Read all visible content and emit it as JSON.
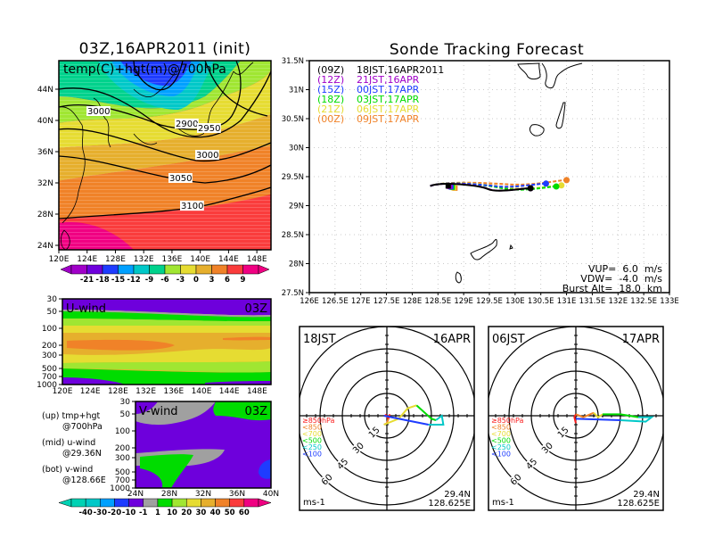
{
  "colors": {
    "temp_scale": [
      "#a000c8",
      "#6e00dc",
      "#1e3cff",
      "#00a0ff",
      "#00c8c8",
      "#00d28c",
      "#a0e632",
      "#e6dc32",
      "#e6af2d",
      "#f08228",
      "#fa3c3c",
      "#f00082"
    ],
    "wind_scale": [
      "#00d2b4",
      "#00c8c8",
      "#00a0ff",
      "#1e3cff",
      "#6e00dc",
      "#a0a0a0",
      "#00dc00",
      "#a0e632",
      "#e6dc32",
      "#e6af2d",
      "#f08228",
      "#fa3c3c",
      "#f00082"
    ],
    "track": [
      "#000000",
      "#a000c8",
      "#1e3cff",
      "#00dc00",
      "#e6dc32",
      "#f08228"
    ],
    "hodo_levels": [
      "#fa1e1e",
      "#f08228",
      "#e6dc32",
      "#00dc00",
      "#00c8c8",
      "#1e3cff"
    ]
  },
  "chart_data": [
    {
      "id": "map700",
      "type": "heatmap",
      "title": "03Z,16APR2011  (init)",
      "label": "temp(C)+hgt(m)@700hPa",
      "xticks": [
        "120E",
        "124E",
        "128E",
        "132E",
        "136E",
        "140E",
        "144E",
        "148E"
      ],
      "yticks": [
        "44N",
        "40N",
        "36N",
        "32N",
        "28N",
        "24N"
      ],
      "xlim": [
        120,
        150
      ],
      "ylim": [
        22,
        47
      ],
      "contour_labels": [
        "3000",
        "2900",
        "2950",
        "3000",
        "3050",
        "3100"
      ],
      "colorbar": {
        "ticks": [
          "-21",
          "-18",
          "-15",
          "-12",
          "-9",
          "-6",
          "-3",
          "0",
          "3",
          "6",
          "9"
        ]
      }
    },
    {
      "id": "uwind",
      "type": "heatmap",
      "label": "U-wind",
      "time": "03Z",
      "xticks": [
        "120E",
        "124E",
        "128E",
        "132E",
        "136E",
        "140E",
        "144E",
        "148E"
      ],
      "yticks": [
        "30",
        "50",
        "100",
        "200",
        "300",
        "500",
        "700",
        "1000"
      ]
    },
    {
      "id": "vwind",
      "type": "heatmap",
      "label": "V-wind",
      "time": "03Z",
      "xticks": [
        "24N",
        "28N",
        "32N",
        "36N",
        "40N"
      ],
      "yticks": [
        "30",
        "50",
        "100",
        "200",
        "300",
        "500",
        "700",
        "1000"
      ],
      "colorbar": {
        "ticks": [
          "-40",
          "-30",
          "-20",
          "-10",
          "-1",
          "1",
          "10",
          "20",
          "30",
          "40",
          "50",
          "60"
        ]
      }
    },
    {
      "id": "track",
      "type": "line",
      "title": "Sonde Tracking Forecast",
      "xticks": [
        "126E",
        "126.5E",
        "127E",
        "127.5E",
        "128E",
        "128.5E",
        "129E",
        "129.5E",
        "130E",
        "130.5E",
        "131E",
        "131.5E",
        "132E",
        "132.5E",
        "133E"
      ],
      "yticks": [
        "31.5N",
        "31N",
        "30.5N",
        "30N",
        "29.5N",
        "29N",
        "28.5N",
        "28N",
        "27.5N"
      ],
      "xlim": [
        126,
        133
      ],
      "ylim": [
        27.5,
        31.5
      ],
      "legend": [
        {
          "utc": "(09Z)",
          "jst": "18JST,16APR2011"
        },
        {
          "utc": "(12Z)",
          "jst": "21JST,16APR"
        },
        {
          "utc": "(15Z)",
          "jst": "00JST,17APR"
        },
        {
          "utc": "(18Z)",
          "jst": "03JST,17APR"
        },
        {
          "utc": "(21Z)",
          "jst": "06JST,17APR"
        },
        {
          "utc": "(00Z)",
          "jst": "09JST,17APR"
        }
      ],
      "series": [
        {
          "name": "09Z",
          "start": [
            128.66,
            29.36
          ],
          "end": [
            130.3,
            29.3
          ]
        },
        {
          "name": "12Z",
          "start": [
            128.66,
            29.37
          ],
          "end": [
            130.3,
            29.3
          ]
        },
        {
          "name": "15Z",
          "start": [
            128.66,
            29.38
          ],
          "end": [
            130.6,
            29.38
          ]
        },
        {
          "name": "18Z",
          "start": [
            128.66,
            29.37
          ],
          "end": [
            130.8,
            29.33
          ]
        },
        {
          "name": "21Z",
          "start": [
            128.66,
            29.38
          ],
          "end": [
            130.9,
            29.35
          ]
        },
        {
          "name": "00Z",
          "start": [
            128.66,
            29.39
          ],
          "end": [
            131.0,
            29.44
          ]
        }
      ],
      "info": {
        "vup": "VUP=  6.0  m/s",
        "vdw": "VDW=  -4.0  m/s",
        "burst": "Burst Alt=  18.0  km"
      }
    },
    {
      "id": "hodo1",
      "type": "line",
      "time": "18JST",
      "date": "16APR",
      "ring_labels": [
        "15",
        "30",
        "45",
        "60"
      ],
      "units": "ms-1",
      "loc_lat": "29.4N",
      "loc_lon": "128.625E",
      "levels": [
        "≥850hPa",
        "<850",
        "<700",
        "<500",
        "<250",
        "<100"
      ],
      "segments": [
        [
          [
            -1,
            1
          ],
          [
            1,
            -2
          ],
          [
            2,
            1
          ]
        ],
        [
          [
            1,
            -2
          ],
          [
            0,
            -5
          ],
          [
            -2,
            -6
          ]
        ],
        [
          [
            -2,
            -6
          ],
          [
            8,
            -2
          ],
          [
            14,
            5
          ],
          [
            20,
            7
          ]
        ],
        [
          [
            20,
            7
          ],
          [
            30,
            -2
          ],
          [
            33,
            -3
          ]
        ],
        [
          [
            33,
            -3
          ],
          [
            37,
            0
          ],
          [
            38,
            -6
          ],
          [
            28,
            -6
          ]
        ],
        [
          [
            28,
            -6
          ],
          [
            -2,
            0
          ]
        ]
      ]
    },
    {
      "id": "hodo2",
      "type": "line",
      "time": "06JST",
      "date": "17APR",
      "ring_labels": [
        "15",
        "30",
        "45",
        "60"
      ],
      "units": "ms-1",
      "loc_lat": "29.4N",
      "loc_lon": "128.625E",
      "levels": [
        "≥850hPa",
        "<850",
        "<700",
        "<500",
        "<250",
        "<100"
      ],
      "segments": [
        [
          [
            0,
            -5
          ],
          [
            -1,
            -1
          ],
          [
            0,
            1
          ]
        ],
        [
          [
            0,
            1
          ],
          [
            5,
            -1
          ],
          [
            12,
            2
          ]
        ],
        [
          [
            12,
            2
          ],
          [
            15,
            -1
          ],
          [
            18,
            1
          ]
        ],
        [
          [
            18,
            1
          ],
          [
            30,
            1
          ],
          [
            42,
            -1
          ]
        ],
        [
          [
            42,
            -1
          ],
          [
            51,
            -1
          ],
          [
            47,
            -4
          ],
          [
            30,
            -3
          ]
        ],
        [
          [
            30,
            -3
          ],
          [
            0,
            -2
          ]
        ]
      ]
    }
  ],
  "side_notes": [
    {
      "a": "(up) tmp+hgt",
      "b": "@700hPa"
    },
    {
      "a": "(mid) u-wind",
      "b": "@29.36N"
    },
    {
      "a": "(bot) v-wind",
      "b": "@128.66E"
    }
  ]
}
